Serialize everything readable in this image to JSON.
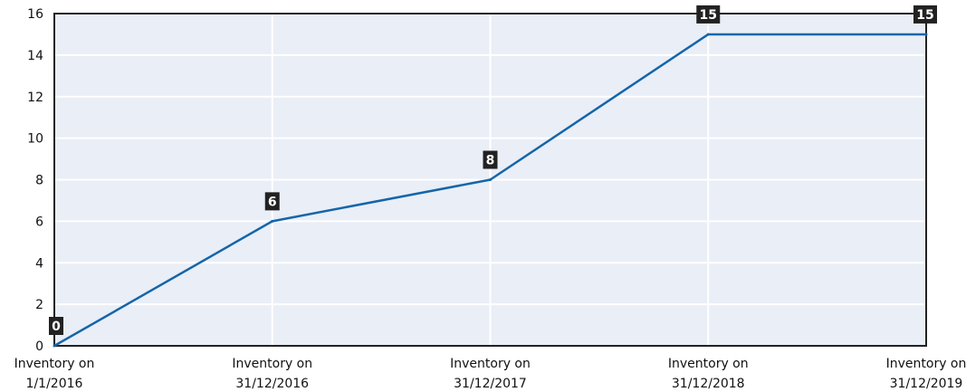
{
  "chart_data": {
    "type": "line",
    "categories": [
      [
        "Inventory on",
        "1/1/2016"
      ],
      [
        "Inventory on",
        "31/12/2016"
      ],
      [
        "Inventory on",
        "31/12/2017"
      ],
      [
        "Inventory on",
        "31/12/2018"
      ],
      [
        "Inventory on",
        "31/12/2019"
      ]
    ],
    "series": [
      {
        "values": [
          0,
          6,
          8,
          15,
          15
        ]
      }
    ],
    "data_labels": [
      "0",
      "6",
      "8",
      "15",
      "15"
    ],
    "ylim": [
      0,
      16
    ],
    "yticks": [
      0,
      2,
      4,
      6,
      8,
      10,
      12,
      14,
      16
    ],
    "grid": true,
    "colors": {
      "line": "#1565a8",
      "plot_background": "#e9eef7",
      "grid": "#ffffff",
      "axis": "#222222",
      "label_box": "#222222"
    }
  }
}
